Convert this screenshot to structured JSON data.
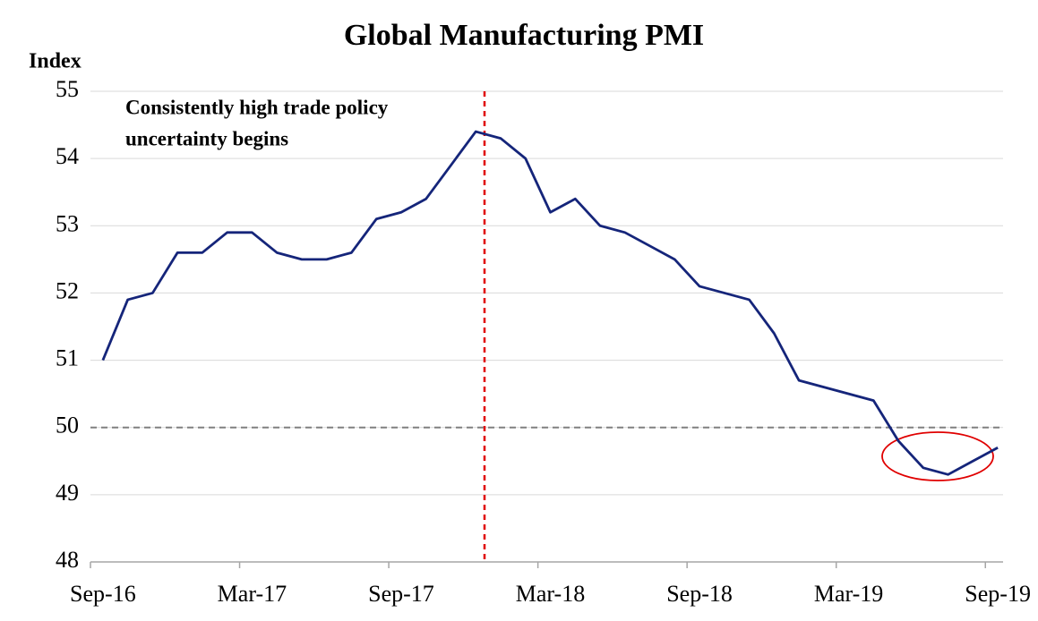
{
  "chart_data": {
    "type": "line",
    "title": "Global Manufacturing PMI",
    "y_axis_label": "Index",
    "categories": [
      "Sep-16",
      null,
      null,
      null,
      null,
      null,
      "Mar-17",
      null,
      null,
      null,
      null,
      null,
      "Sep-17",
      null,
      null,
      null,
      null,
      null,
      "Mar-18",
      null,
      null,
      null,
      null,
      null,
      "Sep-18",
      null,
      null,
      null,
      null,
      null,
      "Mar-19",
      null,
      null,
      null,
      null,
      null,
      "Sep-19"
    ],
    "series": [
      {
        "name": "Global Manufacturing PMI",
        "color": "#15257a",
        "values": [
          51.0,
          51.9,
          52.0,
          52.6,
          52.6,
          52.9,
          52.9,
          52.6,
          52.5,
          52.5,
          52.6,
          53.1,
          53.2,
          53.4,
          53.9,
          54.4,
          54.3,
          54.0,
          53.2,
          53.4,
          53.0,
          52.9,
          52.7,
          52.5,
          52.1,
          52.0,
          51.9,
          51.4,
          50.7,
          50.6,
          50.5,
          50.4,
          49.8,
          49.4,
          49.3,
          49.5,
          49.7
        ]
      }
    ],
    "ylim": [
      48,
      55
    ],
    "yticks": [
      48,
      49,
      50,
      51,
      52,
      53,
      54,
      55
    ],
    "grid": true,
    "reference_line": {
      "value": 50,
      "color": "#808080"
    },
    "annotation": {
      "lines": [
        "Consistently high trade policy",
        "uncertainty begins"
      ],
      "color": "#e00000"
    }
  }
}
